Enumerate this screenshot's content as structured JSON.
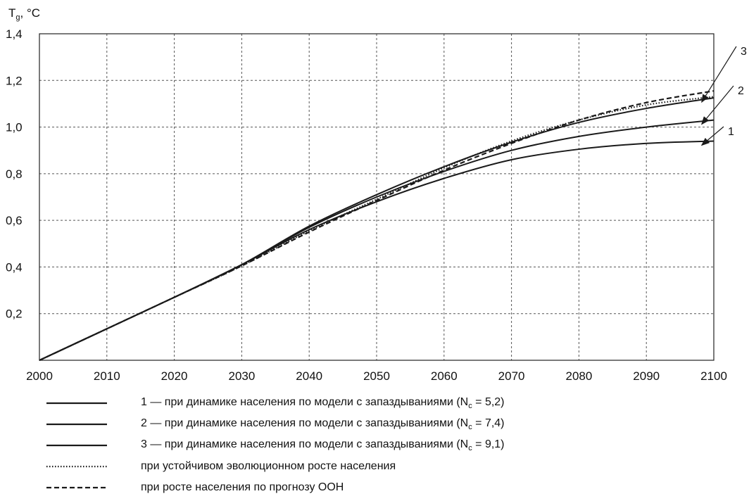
{
  "chart_data": {
    "type": "line",
    "ylabel": "Tg, °C",
    "xlim": [
      2000,
      2100
    ],
    "ylim": [
      0,
      1.4
    ],
    "xticks": [
      "2000",
      "2010",
      "2020",
      "2030",
      "2040",
      "2050",
      "2060",
      "2070",
      "2080",
      "2090",
      "2100"
    ],
    "yticks": [
      "0,2",
      "0,4",
      "0,6",
      "0,8",
      "1,0",
      "1,2",
      "1,4"
    ],
    "grid": true,
    "x": [
      2000,
      2010,
      2020,
      2030,
      2040,
      2050,
      2060,
      2070,
      2080,
      2090,
      2100
    ],
    "series": [
      {
        "name": "1 — при динамике населения по модели с запаздываниями (Nc = 5,2)",
        "style": "solid",
        "values": [
          0.0,
          0.135,
          0.27,
          0.41,
          0.56,
          0.68,
          0.78,
          0.86,
          0.905,
          0.93,
          0.94
        ]
      },
      {
        "name": "2 — при динамике населения по модели с запаздываниями (Nc = 7,4)",
        "style": "solid",
        "values": [
          0.0,
          0.135,
          0.27,
          0.41,
          0.57,
          0.7,
          0.81,
          0.9,
          0.96,
          1.0,
          1.03
        ]
      },
      {
        "name": "3 — при динамике населения по модели с запаздываниями (Nc = 9,1)",
        "style": "solid",
        "values": [
          0.0,
          0.135,
          0.27,
          0.41,
          0.575,
          0.71,
          0.83,
          0.935,
          1.02,
          1.08,
          1.125
        ]
      },
      {
        "name": "при устойчивом эволюционном росте населения",
        "style": "dotted",
        "values": [
          0.0,
          0.135,
          0.27,
          0.405,
          0.555,
          0.69,
          0.825,
          0.94,
          1.03,
          1.095,
          1.13
        ]
      },
      {
        "name": "при росте населения по прогнозу ООН",
        "style": "dashed",
        "values": [
          0.0,
          0.135,
          0.27,
          0.405,
          0.55,
          0.685,
          0.815,
          0.93,
          1.03,
          1.105,
          1.155
        ]
      }
    ],
    "annotations": [
      "1",
      "2",
      "3"
    ]
  },
  "ylabel_main": "T",
  "ylabel_sub": "g",
  "ylabel_unit": ", °C",
  "legend": [
    {
      "style": "solid",
      "label": "1 — при динамике населения по модели с запаздываниями (N",
      "sub": "c",
      "tail": " = 5,2)"
    },
    {
      "style": "solid",
      "label": "2 — при динамике населения по модели с запаздываниями (N",
      "sub": "c",
      "tail": " = 7,4)"
    },
    {
      "style": "solid",
      "label": "3 — при динамике населения по модели с запаздываниями (N",
      "sub": "c",
      "tail": " = 9,1)"
    },
    {
      "style": "dotted",
      "label": "при устойчивом эволюционном росте населения",
      "sub": "",
      "tail": ""
    },
    {
      "style": "dashed",
      "label": "при росте населения по прогнозу ООН",
      "sub": "",
      "tail": ""
    }
  ],
  "style": {
    "line_color": "#1a1a1a",
    "grid_color": "#555555"
  }
}
